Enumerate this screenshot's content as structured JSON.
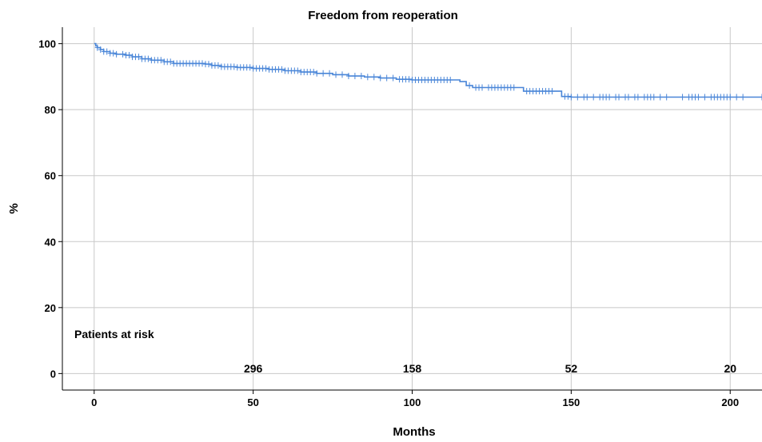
{
  "chart_data": {
    "type": "line",
    "title": "Freedom from reoperation",
    "xlabel": "Months",
    "ylabel": "%",
    "xlim": [
      -10,
      210
    ],
    "ylim": [
      -5,
      105
    ],
    "xticks": [
      0,
      50,
      100,
      150,
      200
    ],
    "yticks": [
      0,
      20,
      40,
      60,
      80,
      100
    ],
    "grid": true,
    "line_color": "#4a86d8",
    "series": [
      {
        "points": [
          [
            0,
            100
          ],
          [
            0.5,
            99.3
          ],
          [
            1,
            98.8
          ],
          [
            2,
            98.2
          ],
          [
            3,
            97.6
          ],
          [
            5,
            97.1
          ],
          [
            7,
            96.8
          ],
          [
            10,
            96.5
          ],
          [
            12,
            96.0
          ],
          [
            15,
            95.4
          ],
          [
            18,
            95.0
          ],
          [
            22,
            94.5
          ],
          [
            25,
            94.0
          ],
          [
            30,
            94.0
          ],
          [
            35,
            93.8
          ],
          [
            37,
            93.4
          ],
          [
            40,
            93.0
          ],
          [
            45,
            92.8
          ],
          [
            50,
            92.5
          ],
          [
            55,
            92.2
          ],
          [
            60,
            91.8
          ],
          [
            65,
            91.4
          ],
          [
            70,
            91.0
          ],
          [
            75,
            90.6
          ],
          [
            80,
            90.2
          ],
          [
            85,
            89.9
          ],
          [
            90,
            89.6
          ],
          [
            95,
            89.2
          ],
          [
            100,
            89.0
          ],
          [
            110,
            89.0
          ],
          [
            115,
            88.5
          ],
          [
            117,
            87.3
          ],
          [
            119,
            86.7
          ],
          [
            125,
            86.7
          ],
          [
            133,
            86.7
          ],
          [
            135,
            85.6
          ],
          [
            145,
            85.6
          ],
          [
            147,
            84.0
          ],
          [
            150,
            83.8
          ],
          [
            210,
            83.8
          ]
        ],
        "censored": [
          1,
          2,
          3,
          4,
          5,
          6,
          7,
          9,
          10,
          11,
          12,
          13,
          14,
          15,
          16,
          17,
          18,
          19,
          20,
          21,
          22,
          23,
          24,
          25,
          26,
          27,
          28,
          29,
          30,
          31,
          32,
          33,
          34,
          35,
          36,
          37,
          38,
          39,
          40,
          41,
          42,
          43,
          44,
          45,
          46,
          47,
          48,
          49,
          50,
          51,
          52,
          53,
          54,
          55,
          56,
          57,
          58,
          59,
          60,
          61,
          62,
          63,
          64,
          65,
          66,
          67,
          68,
          69,
          70,
          72,
          74,
          76,
          78,
          80,
          82,
          84,
          86,
          88,
          90,
          92,
          94,
          96,
          97,
          98,
          99,
          100,
          101,
          102,
          103,
          104,
          105,
          106,
          107,
          108,
          109,
          110,
          111,
          112,
          118,
          120,
          121,
          122,
          124,
          125,
          126,
          127,
          128,
          129,
          130,
          131,
          132,
          136,
          137,
          138,
          139,
          140,
          141,
          142,
          143,
          144,
          148,
          149,
          150,
          152,
          154,
          155,
          157,
          159,
          160,
          161,
          162,
          164,
          165,
          167,
          168,
          170,
          171,
          173,
          174,
          175,
          176,
          178,
          180,
          185,
          187,
          188,
          189,
          190,
          192,
          194,
          195,
          196,
          197,
          198,
          199,
          200,
          202,
          204,
          210
        ]
      }
    ],
    "risk_table": {
      "label": "Patients at risk",
      "items": [
        {
          "x": 50,
          "value": "296"
        },
        {
          "x": 100,
          "value": "158"
        },
        {
          "x": 150,
          "value": "52"
        },
        {
          "x": 200,
          "value": "20"
        }
      ]
    }
  }
}
